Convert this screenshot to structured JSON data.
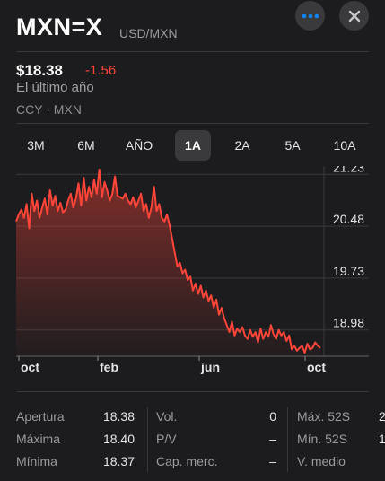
{
  "header": {
    "symbol": "MXN=X",
    "pair": "USD/MXN",
    "more_icon": "ellipsis-icon",
    "close_icon": "close-x-icon"
  },
  "quote": {
    "price": "$18.38",
    "change": "-1.56",
    "period": "El último año",
    "currency": "CCY · MXN",
    "change_color": "#ff453a"
  },
  "tabs": [
    {
      "label": "3M"
    },
    {
      "label": "6M"
    },
    {
      "label": "AÑO"
    },
    {
      "label": "1A",
      "active": true
    },
    {
      "label": "2A"
    },
    {
      "label": "5A"
    },
    {
      "label": "10A"
    }
  ],
  "chart_data": {
    "type": "area",
    "y_ticks": [
      "21.23",
      "20.48",
      "19.73",
      "18.98"
    ],
    "x_ticks": [
      "oct",
      "feb",
      "jun",
      "oct"
    ],
    "ylim": [
      18.6,
      21.35
    ],
    "line_color": "#ff453a",
    "values": [
      20.55,
      20.65,
      20.72,
      20.6,
      20.8,
      20.45,
      20.95,
      20.7,
      20.85,
      20.6,
      20.75,
      20.88,
      20.65,
      21.0,
      20.78,
      20.92,
      20.7,
      20.82,
      20.68,
      20.72,
      20.85,
      20.95,
      20.75,
      20.88,
      21.1,
      20.78,
      21.18,
      20.85,
      21.05,
      20.9,
      21.15,
      20.95,
      21.3,
      20.9,
      21.12,
      21.0,
      20.85,
      20.95,
      21.2,
      20.92,
      20.9,
      20.88,
      20.95,
      20.85,
      20.8,
      20.9,
      20.75,
      20.85,
      20.95,
      20.7,
      20.8,
      20.6,
      20.75,
      21.05,
      20.7,
      20.8,
      20.6,
      20.55,
      20.65,
      20.5,
      20.3,
      20.1,
      19.9,
      19.95,
      19.8,
      19.85,
      19.7,
      19.75,
      19.55,
      19.65,
      19.5,
      19.62,
      19.45,
      19.55,
      19.4,
      19.48,
      19.3,
      19.42,
      19.2,
      19.3,
      19.15,
      19.05,
      18.95,
      19.1,
      18.9,
      19.0,
      18.95,
      19.02,
      18.9,
      18.85,
      18.98,
      18.88,
      18.95,
      18.8,
      19.0,
      18.85,
      18.95,
      18.88,
      19.05,
      18.92,
      18.85,
      18.98,
      18.9,
      18.95,
      18.82,
      18.9,
      18.7,
      18.75,
      18.68,
      18.72,
      18.75,
      18.65,
      18.78,
      18.7,
      18.72,
      18.8,
      18.75,
      18.72
    ]
  },
  "stats": {
    "col1": [
      {
        "label": "Apertura",
        "value": "18.38"
      },
      {
        "label": "Máxima",
        "value": "18.40"
      },
      {
        "label": "Mínima",
        "value": "18.37"
      }
    ],
    "col2": [
      {
        "label": "Vol.",
        "value": "0"
      },
      {
        "label": "P/V",
        "value": "–"
      },
      {
        "label": "Cap. merc.",
        "value": "–"
      }
    ],
    "col3": [
      {
        "label": "Máx. 52S",
        "value": "2"
      },
      {
        "label": "Mín. 52S",
        "value": "1"
      },
      {
        "label": "V. medio",
        "value": ""
      }
    ]
  }
}
